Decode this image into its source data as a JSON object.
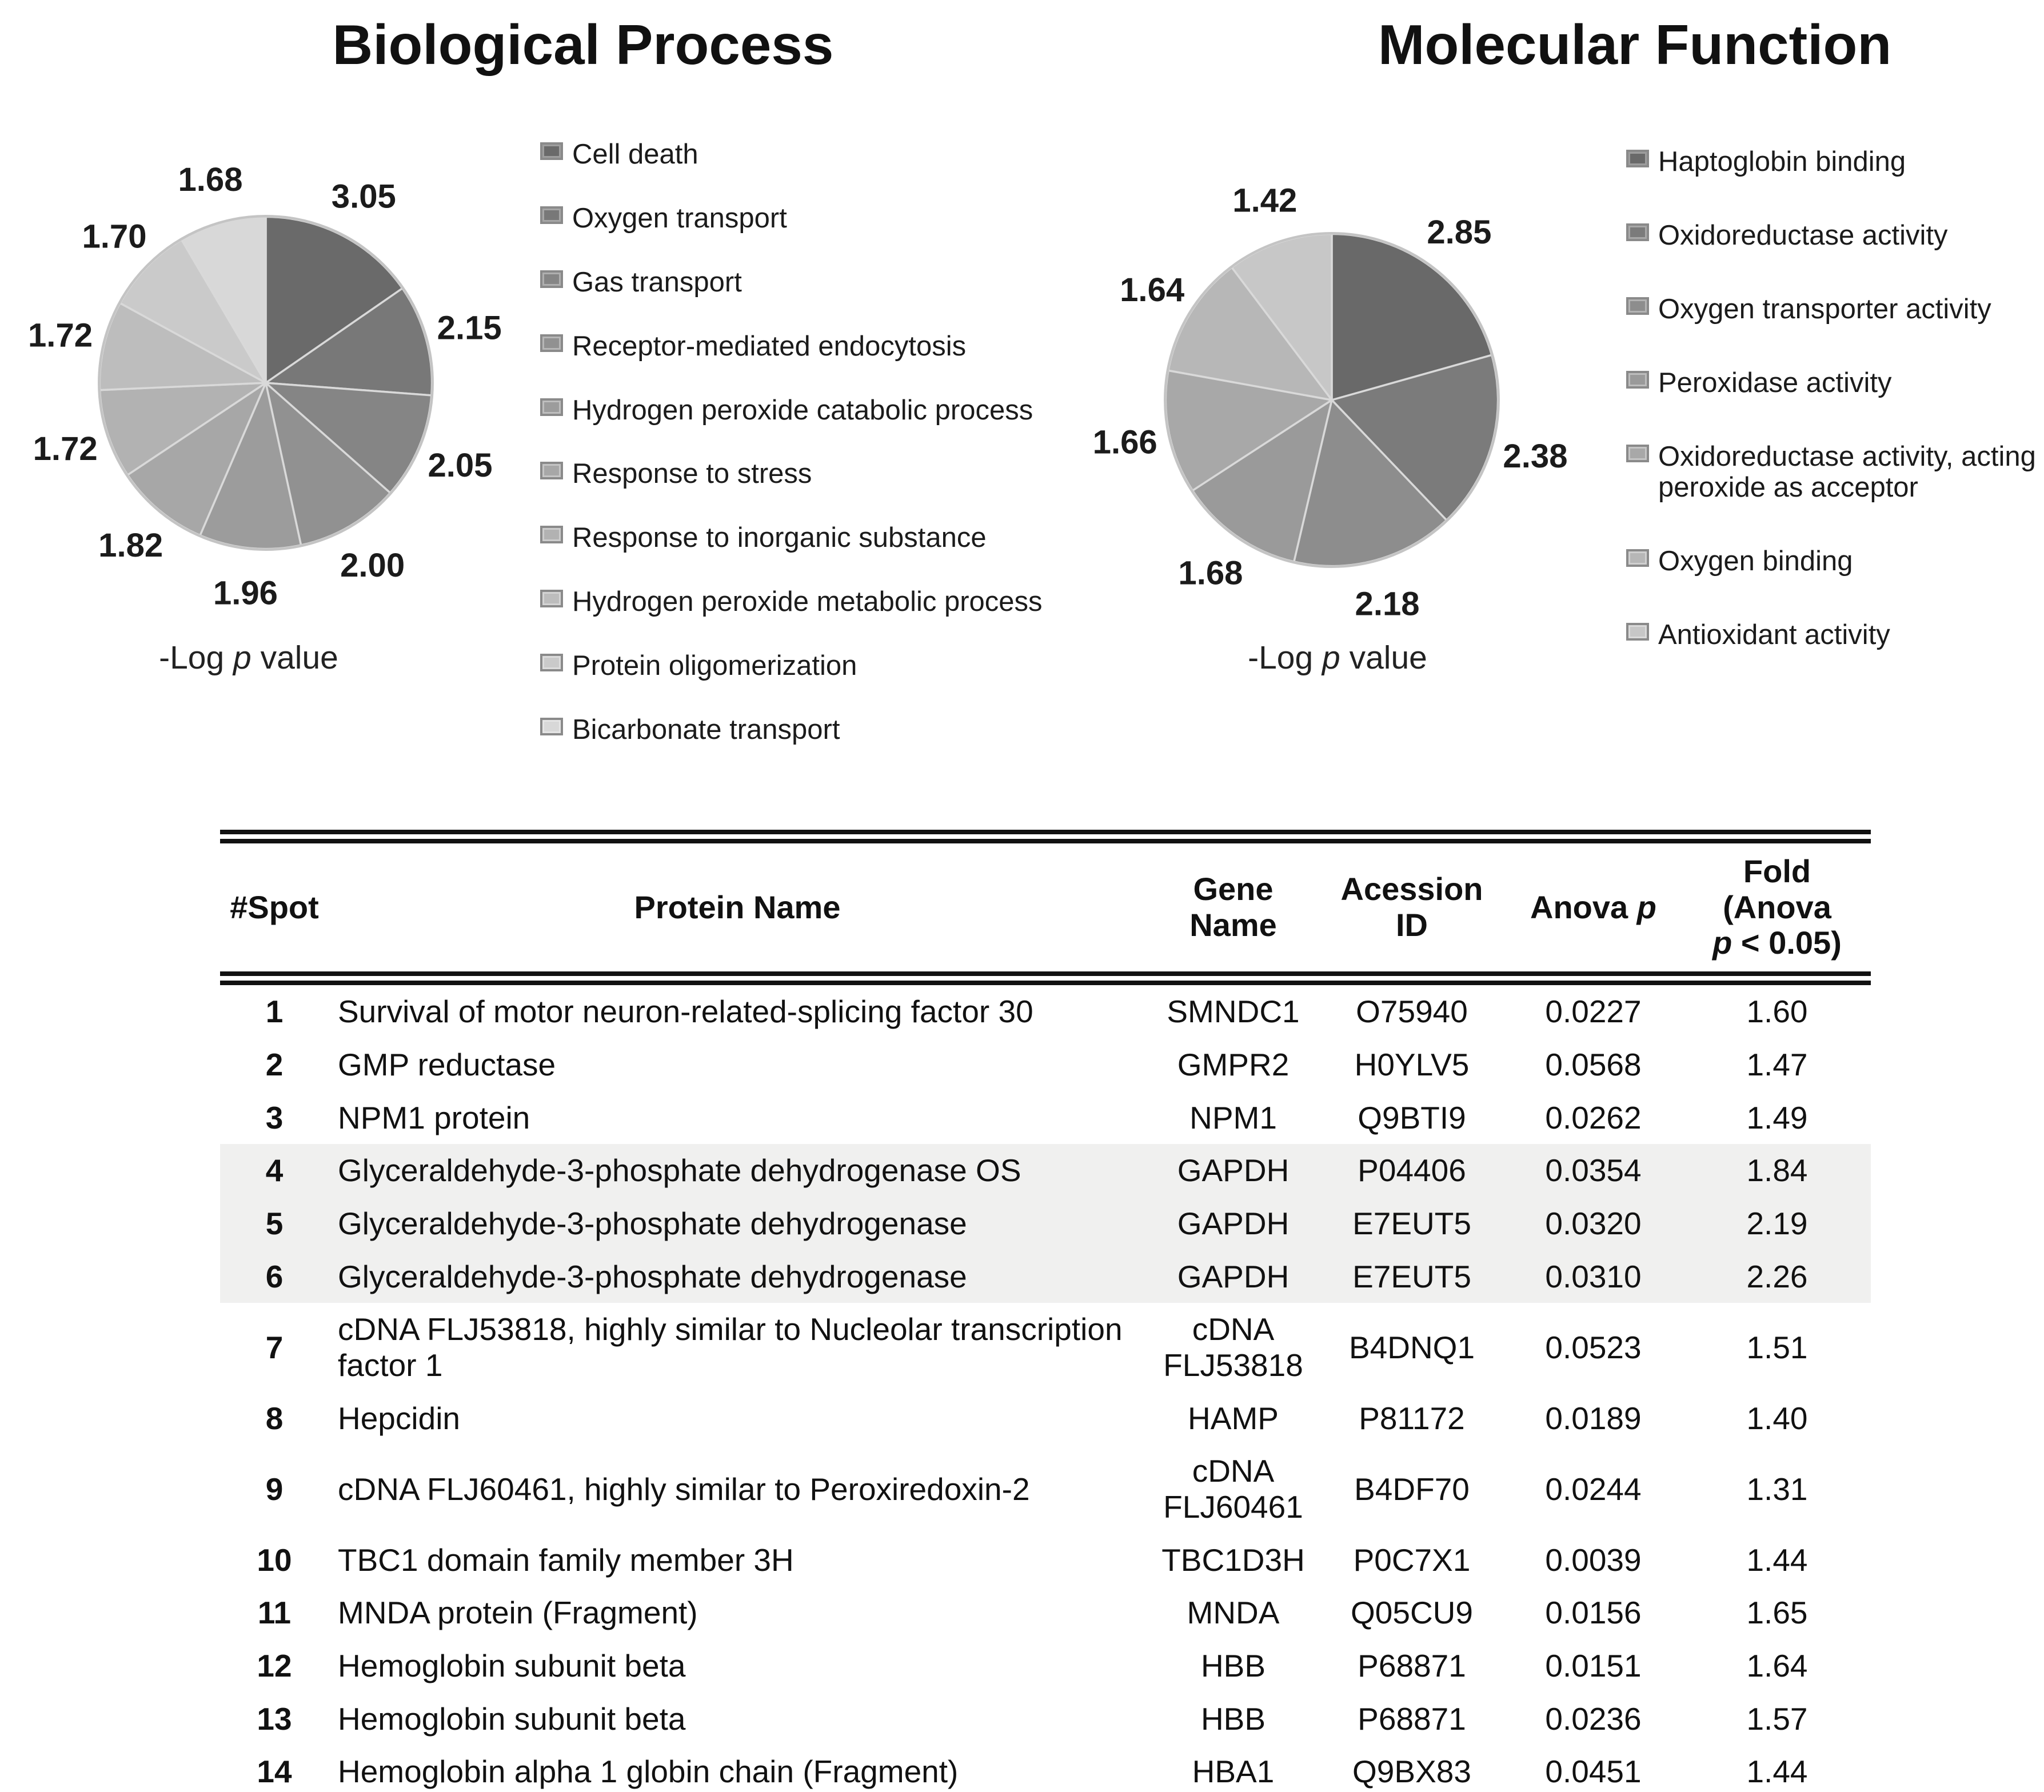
{
  "chart_data": [
    {
      "type": "pie",
      "title": "Biological Process",
      "caption": "-Log p value",
      "legend_position": "right",
      "direction": "clockwise",
      "start_angle_deg": 0,
      "categories": [
        "Cell death",
        "Oxygen transport",
        "Gas transport",
        "Receptor-mediated endocytosis",
        "Hydrogen peroxide catabolic process",
        "Response to stress",
        "Response to inorganic substance",
        "Hydrogen peroxide metabolic process",
        "Protein oligomerization",
        "Bicarbonate transport"
      ],
      "values": [
        3.05,
        2.15,
        2.05,
        2.0,
        1.96,
        1.82,
        1.72,
        1.72,
        1.7,
        1.68
      ],
      "value_labels": [
        "3.05",
        "2.15",
        "2.05",
        "2.00",
        "1.96",
        "1.82",
        "1.72",
        "1.72",
        "1.70",
        "1.68"
      ],
      "colors": [
        "#6a6a6a",
        "#787878",
        "#858585",
        "#919191",
        "#9c9c9c",
        "#a7a7a7",
        "#b2b2b2",
        "#bdbdbd",
        "#cacaca",
        "#d8d8d8"
      ]
    },
    {
      "type": "pie",
      "title": "Molecular Function",
      "caption": "-Log p value",
      "legend_position": "right",
      "direction": "clockwise",
      "start_angle_deg": 0,
      "categories": [
        "Haptoglobin binding",
        "Oxidoreductase activity",
        "Oxygen transporter activity",
        "Peroxidase activity",
        "Oxidoreductase activity, acting on peroxide as acceptor",
        "Oxygen binding",
        "Antioxidant activity"
      ],
      "values": [
        2.85,
        2.38,
        2.18,
        1.68,
        1.66,
        1.64,
        1.42
      ],
      "value_labels": [
        "2.85",
        "2.38",
        "2.18",
        "1.68",
        "1.66",
        "1.64",
        "1.42"
      ],
      "colors": [
        "#696969",
        "#7b7b7b",
        "#8d8d8d",
        "#9a9a9a",
        "#a8a8a8",
        "#b7b7b7",
        "#c7c7c7"
      ]
    },
    {
      "type": "table",
      "headers": [
        "#Spot",
        "Protein Name",
        "Gene\nName",
        "Acession\nID",
        "Anova p",
        "Fold (Anova\np < 0.05)"
      ],
      "rows": [
        {
          "spot": "1",
          "protein": "Survival of motor neuron-related-splicing factor 30",
          "gene": "SMNDC1",
          "accession": "O75940",
          "anova": "0.0227",
          "fold": "1.60",
          "highlight": false
        },
        {
          "spot": "2",
          "protein": "GMP reductase",
          "gene": "GMPR2",
          "accession": "H0YLV5",
          "anova": "0.0568",
          "fold": "1.47",
          "highlight": false
        },
        {
          "spot": "3",
          "protein": "NPM1 protein",
          "gene": "NPM1",
          "accession": "Q9BTI9",
          "anova": "0.0262",
          "fold": "1.49",
          "highlight": false
        },
        {
          "spot": "4",
          "protein": "Glyceraldehyde-3-phosphate dehydrogenase OS",
          "gene": "GAPDH",
          "accession": "P04406",
          "anova": "0.0354",
          "fold": "1.84",
          "highlight": true
        },
        {
          "spot": "5",
          "protein": "Glyceraldehyde-3-phosphate dehydrogenase",
          "gene": "GAPDH",
          "accession": "E7EUT5",
          "anova": "0.0320",
          "fold": "2.19",
          "highlight": true
        },
        {
          "spot": "6",
          "protein": "Glyceraldehyde-3-phosphate dehydrogenase",
          "gene": "GAPDH",
          "accession": "E7EUT5",
          "anova": "0.0310",
          "fold": "2.26",
          "highlight": true
        },
        {
          "spot": "7",
          "protein": "cDNA FLJ53818, highly similar to Nucleolar transcription factor 1",
          "gene": "cDNA FLJ53818",
          "accession": "B4DNQ1",
          "anova": "0.0523",
          "fold": "1.51",
          "highlight": false
        },
        {
          "spot": "8",
          "protein": "Hepcidin",
          "gene": "HAMP",
          "accession": "P81172",
          "anova": "0.0189",
          "fold": "1.40",
          "highlight": false
        },
        {
          "spot": "9",
          "protein": "cDNA FLJ60461, highly similar to Peroxiredoxin-2",
          "gene": "cDNA FLJ60461",
          "accession": "B4DF70",
          "anova": "0.0244",
          "fold": "1.31",
          "highlight": false
        },
        {
          "spot": "10",
          "protein": "TBC1 domain family member 3H",
          "gene": "TBC1D3H",
          "accession": "P0C7X1",
          "anova": "0.0039",
          "fold": "1.44",
          "highlight": false
        },
        {
          "spot": "11",
          "protein": "MNDA protein (Fragment)",
          "gene": "MNDA",
          "accession": "Q05CU9",
          "anova": "0.0156",
          "fold": "1.65",
          "highlight": false
        },
        {
          "spot": "12",
          "protein": "Hemoglobin subunit beta",
          "gene": "HBB",
          "accession": "P68871",
          "anova": "0.0151",
          "fold": "1.64",
          "highlight": false
        },
        {
          "spot": "13",
          "protein": "Hemoglobin subunit beta",
          "gene": "HBB",
          "accession": "P68871",
          "anova": "0.0236",
          "fold": "1.57",
          "highlight": false
        },
        {
          "spot": "14",
          "protein": "Hemoglobin alpha 1 globin chain (Fragment)",
          "gene": "HBA1",
          "accession": "Q9BX83",
          "anova": "0.0451",
          "fold": "1.44",
          "highlight": false
        }
      ]
    }
  ]
}
